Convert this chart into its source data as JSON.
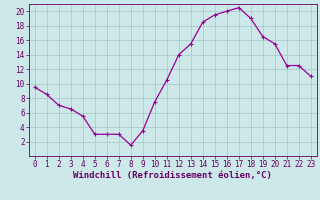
{
  "x": [
    0,
    1,
    2,
    3,
    4,
    5,
    6,
    7,
    8,
    9,
    10,
    11,
    12,
    13,
    14,
    15,
    16,
    17,
    18,
    19,
    20,
    21,
    22,
    23
  ],
  "y": [
    9.5,
    8.5,
    7.0,
    6.5,
    5.5,
    3.0,
    3.0,
    3.0,
    1.5,
    3.5,
    7.5,
    10.5,
    14.0,
    15.5,
    18.5,
    19.5,
    20.0,
    20.5,
    19.0,
    16.5,
    15.5,
    12.5,
    12.5,
    11.0
  ],
  "line_color": "#990099",
  "marker": "+",
  "marker_size": 3,
  "marker_linewidth": 0.8,
  "bg_color": "#cce8e8",
  "grid_color": "#aacccc",
  "xlabel": "Windchill (Refroidissement éolien,°C)",
  "xlim": [
    -0.5,
    23.5
  ],
  "ylim": [
    0,
    21
  ],
  "yticks": [
    2,
    4,
    6,
    8,
    10,
    12,
    14,
    16,
    18,
    20
  ],
  "xticks": [
    0,
    1,
    2,
    3,
    4,
    5,
    6,
    7,
    8,
    9,
    10,
    11,
    12,
    13,
    14,
    15,
    16,
    17,
    18,
    19,
    20,
    21,
    22,
    23
  ],
  "tick_fontsize": 5.5,
  "xlabel_fontsize": 6.5,
  "axis_color": "#660066",
  "line_width": 0.9
}
